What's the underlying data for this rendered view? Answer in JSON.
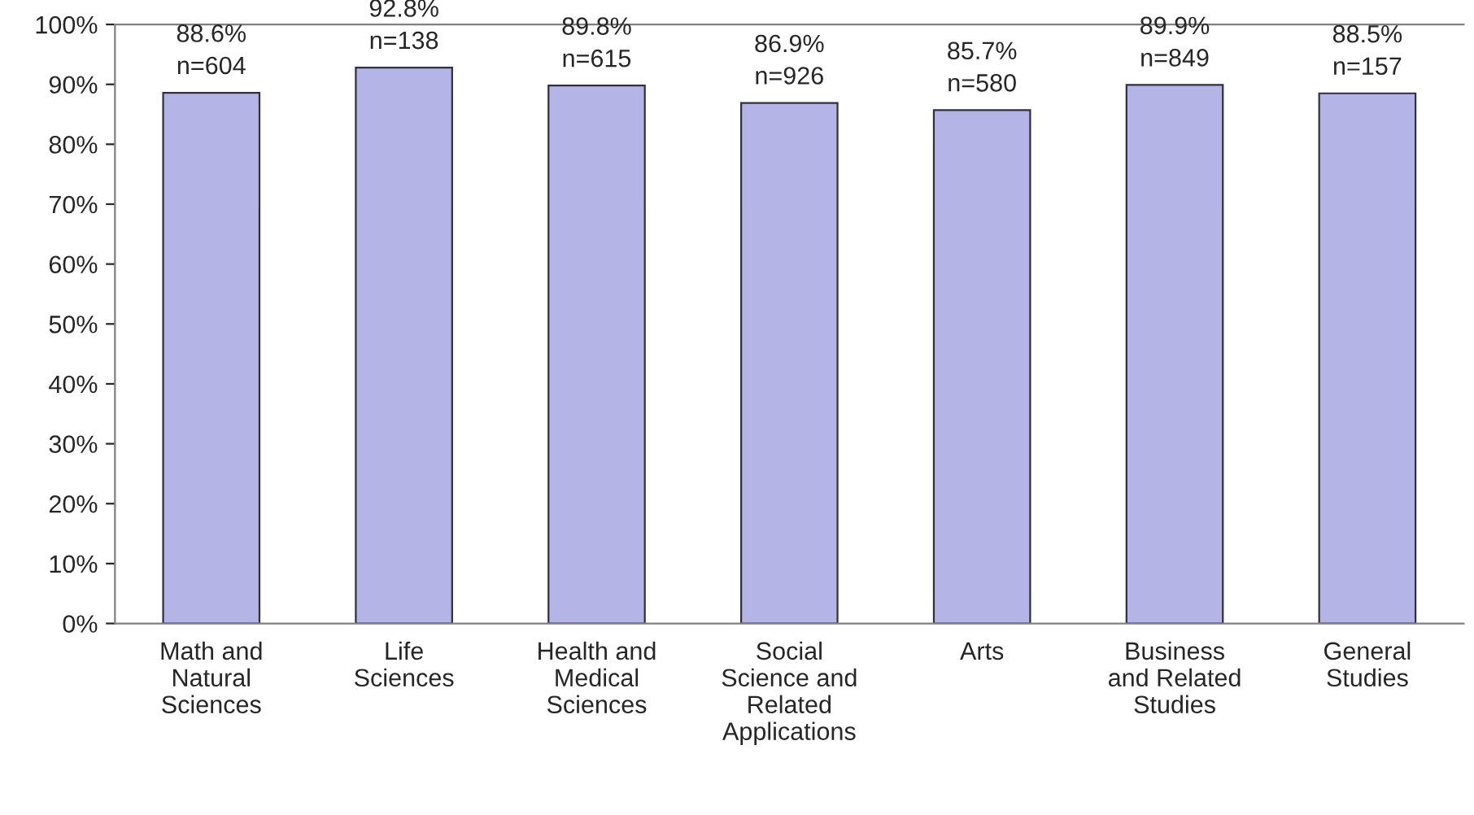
{
  "chart_data": {
    "type": "bar",
    "categories": [
      "Math and\nNatural\nSciences",
      "Life\nSciences",
      "Health and\nMedical\nSciences",
      "Social\nScience and\nRelated\nApplications",
      "Arts",
      "Business\nand Related\nStudies",
      "General\nStudies"
    ],
    "values": [
      88.6,
      92.8,
      89.8,
      86.9,
      85.7,
      89.9,
      88.5
    ],
    "value_labels": [
      "88.6%\nn=604",
      "92.8%\nn=138",
      "89.8%\nn=615",
      "86.9%\nn=926",
      "85.7%\nn=580",
      "89.9%\nn=849",
      "88.5%\nn=157"
    ],
    "color": "#b4b4e6",
    "ylim": [
      0,
      100
    ],
    "yticks": [
      {
        "value": 0,
        "label": "0%"
      },
      {
        "value": 10,
        "label": "10%"
      },
      {
        "value": 20,
        "label": "20%"
      },
      {
        "value": 30,
        "label": "30%"
      },
      {
        "value": 40,
        "label": "40%"
      },
      {
        "value": 50,
        "label": "50%"
      },
      {
        "value": 60,
        "label": "60%"
      },
      {
        "value": 70,
        "label": "70%"
      },
      {
        "value": 80,
        "label": "80%"
      },
      {
        "value": 90,
        "label": "90%"
      },
      {
        "value": 100,
        "label": "100%"
      }
    ],
    "grid": false
  }
}
